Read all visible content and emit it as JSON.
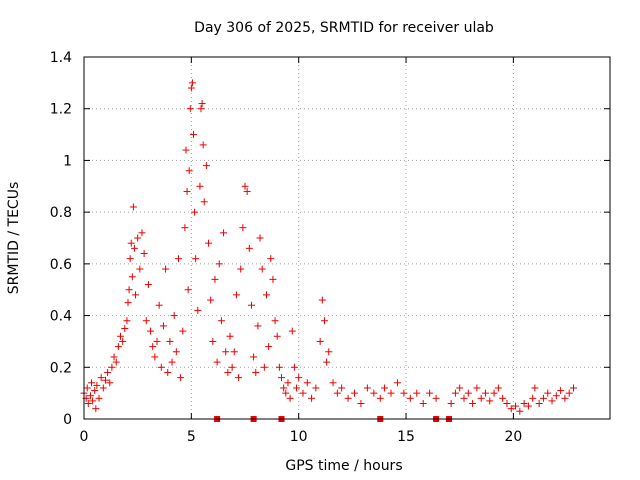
{
  "chart_data": {
    "type": "scatter",
    "title": "Day 306 of 2025, SRMTID for receiver ulab",
    "xlabel": "GPS time / hours",
    "ylabel": "SRMTID / TECUs",
    "xlim": [
      0,
      24.5
    ],
    "ylim": [
      0,
      1.4
    ],
    "x_ticks": [
      0,
      5,
      10,
      15,
      20
    ],
    "x_tick_labels": [
      "0",
      "5",
      "10",
      "15",
      "20"
    ],
    "y_ticks": [
      0,
      0.2,
      0.4,
      0.6,
      0.8,
      1.0,
      1.2,
      1.4
    ],
    "y_tick_labels": [
      "0",
      "0.2",
      "0.4",
      "0.6",
      "0.8",
      "1",
      "1.2",
      "1.4"
    ],
    "grid": true,
    "marker": "plus",
    "marker_color": "#ee0000",
    "series": [
      {
        "name": "SRMTID",
        "points": [
          [
            0.0,
            0.1
          ],
          [
            0.1,
            0.08
          ],
          [
            0.15,
            0.12
          ],
          [
            0.2,
            0.06
          ],
          [
            0.3,
            0.09
          ],
          [
            0.35,
            0.14
          ],
          [
            0.4,
            0.07
          ],
          [
            0.5,
            0.11
          ],
          [
            0.55,
            0.04
          ],
          [
            0.6,
            0.13
          ],
          [
            0.7,
            0.08
          ],
          [
            0.8,
            0.16
          ],
          [
            0.9,
            0.12
          ],
          [
            1.0,
            0.15
          ],
          [
            1.1,
            0.18
          ],
          [
            1.2,
            0.14
          ],
          [
            1.3,
            0.2
          ],
          [
            1.4,
            0.24
          ],
          [
            1.5,
            0.22
          ],
          [
            1.6,
            0.28
          ],
          [
            1.7,
            0.32
          ],
          [
            1.8,
            0.3
          ],
          [
            1.9,
            0.35
          ],
          [
            2.0,
            0.38
          ],
          [
            2.05,
            0.45
          ],
          [
            2.1,
            0.5
          ],
          [
            2.15,
            0.62
          ],
          [
            2.2,
            0.68
          ],
          [
            2.25,
            0.55
          ],
          [
            2.3,
            0.82
          ],
          [
            2.35,
            0.66
          ],
          [
            2.4,
            0.48
          ],
          [
            2.5,
            0.7
          ],
          [
            2.6,
            0.58
          ],
          [
            2.7,
            0.72
          ],
          [
            2.8,
            0.64
          ],
          [
            2.9,
            0.38
          ],
          [
            3.0,
            0.52
          ],
          [
            3.1,
            0.34
          ],
          [
            3.2,
            0.28
          ],
          [
            3.3,
            0.24
          ],
          [
            3.4,
            0.3
          ],
          [
            3.5,
            0.44
          ],
          [
            3.6,
            0.2
          ],
          [
            3.7,
            0.36
          ],
          [
            3.8,
            0.58
          ],
          [
            3.9,
            0.18
          ],
          [
            4.0,
            0.3
          ],
          [
            4.1,
            0.22
          ],
          [
            4.2,
            0.4
          ],
          [
            4.3,
            0.26
          ],
          [
            4.4,
            0.62
          ],
          [
            4.5,
            0.16
          ],
          [
            4.6,
            0.34
          ],
          [
            4.7,
            0.74
          ],
          [
            4.75,
            1.04
          ],
          [
            4.8,
            0.88
          ],
          [
            4.85,
            0.5
          ],
          [
            4.9,
            0.96
          ],
          [
            4.95,
            1.2
          ],
          [
            5.0,
            1.28
          ],
          [
            5.05,
            1.3
          ],
          [
            5.1,
            1.1
          ],
          [
            5.15,
            0.8
          ],
          [
            5.2,
            0.62
          ],
          [
            5.3,
            0.42
          ],
          [
            5.4,
            0.9
          ],
          [
            5.45,
            1.2
          ],
          [
            5.5,
            1.22
          ],
          [
            5.55,
            1.06
          ],
          [
            5.6,
            0.84
          ],
          [
            5.7,
            0.98
          ],
          [
            5.8,
            0.68
          ],
          [
            5.9,
            0.46
          ],
          [
            6.0,
            0.3
          ],
          [
            6.1,
            0.54
          ],
          [
            6.2,
            0.22
          ],
          [
            6.3,
            0.6
          ],
          [
            6.4,
            0.38
          ],
          [
            6.5,
            0.72
          ],
          [
            6.6,
            0.26
          ],
          [
            6.7,
            0.18
          ],
          [
            6.8,
            0.32
          ],
          [
            6.9,
            0.2
          ],
          [
            7.0,
            0.26
          ],
          [
            7.1,
            0.48
          ],
          [
            7.2,
            0.16
          ],
          [
            7.3,
            0.58
          ],
          [
            7.4,
            0.74
          ],
          [
            7.5,
            0.9
          ],
          [
            7.6,
            0.88
          ],
          [
            7.7,
            0.66
          ],
          [
            7.8,
            0.44
          ],
          [
            7.9,
            0.24
          ],
          [
            8.0,
            0.18
          ],
          [
            8.1,
            0.36
          ],
          [
            8.2,
            0.7
          ],
          [
            8.3,
            0.58
          ],
          [
            8.4,
            0.2
          ],
          [
            8.5,
            0.48
          ],
          [
            8.6,
            0.28
          ],
          [
            8.7,
            0.62
          ],
          [
            8.8,
            0.54
          ],
          [
            8.9,
            0.38
          ],
          [
            9.0,
            0.32
          ],
          [
            9.1,
            0.2
          ],
          [
            9.2,
            0.16
          ],
          [
            9.3,
            0.12
          ],
          [
            9.4,
            0.1
          ],
          [
            9.5,
            0.14
          ],
          [
            9.6,
            0.08
          ],
          [
            9.7,
            0.34
          ],
          [
            9.8,
            0.2
          ],
          [
            9.9,
            0.12
          ],
          [
            10.0,
            0.16
          ],
          [
            10.2,
            0.1
          ],
          [
            10.4,
            0.14
          ],
          [
            10.6,
            0.08
          ],
          [
            10.8,
            0.12
          ],
          [
            11.0,
            0.3
          ],
          [
            11.1,
            0.46
          ],
          [
            11.2,
            0.38
          ],
          [
            11.3,
            0.22
          ],
          [
            11.4,
            0.26
          ],
          [
            11.6,
            0.14
          ],
          [
            11.8,
            0.1
          ],
          [
            12.0,
            0.12
          ],
          [
            12.3,
            0.08
          ],
          [
            12.6,
            0.1
          ],
          [
            12.9,
            0.06
          ],
          [
            13.2,
            0.12
          ],
          [
            13.5,
            0.1
          ],
          [
            13.8,
            0.08
          ],
          [
            14.0,
            0.12
          ],
          [
            14.3,
            0.1
          ],
          [
            14.6,
            0.14
          ],
          [
            14.9,
            0.1
          ],
          [
            15.2,
            0.08
          ],
          [
            15.5,
            0.1
          ],
          [
            15.8,
            0.06
          ],
          [
            16.1,
            0.1
          ],
          [
            16.4,
            0.08
          ],
          [
            17.1,
            0.06
          ],
          [
            17.3,
            0.1
          ],
          [
            17.5,
            0.12
          ],
          [
            17.7,
            0.08
          ],
          [
            17.9,
            0.1
          ],
          [
            18.1,
            0.06
          ],
          [
            18.3,
            0.12
          ],
          [
            18.5,
            0.08
          ],
          [
            18.7,
            0.1
          ],
          [
            18.9,
            0.07
          ],
          [
            19.1,
            0.1
          ],
          [
            19.3,
            0.12
          ],
          [
            19.5,
            0.08
          ],
          [
            19.7,
            0.06
          ],
          [
            19.9,
            0.04
          ],
          [
            20.1,
            0.05
          ],
          [
            20.3,
            0.03
          ],
          [
            20.5,
            0.06
          ],
          [
            20.7,
            0.05
          ],
          [
            20.9,
            0.08
          ],
          [
            21.0,
            0.12
          ],
          [
            21.2,
            0.06
          ],
          [
            21.4,
            0.08
          ],
          [
            21.6,
            0.1
          ],
          [
            21.8,
            0.07
          ],
          [
            22.0,
            0.09
          ],
          [
            22.2,
            0.11
          ],
          [
            22.4,
            0.08
          ],
          [
            22.6,
            0.1
          ],
          [
            22.8,
            0.12
          ]
        ]
      }
    ],
    "zero_marks_x": [
      6.2,
      7.9,
      9.2,
      13.8,
      16.4,
      17.0
    ]
  }
}
